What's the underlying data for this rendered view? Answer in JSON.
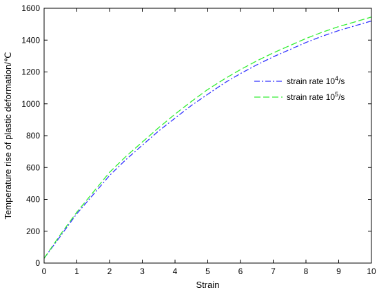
{
  "chart_data": {
    "type": "line",
    "title": "",
    "xlabel": "Strain",
    "ylabel": "Temperature rise of plastic deformation/℃",
    "xlim": [
      0,
      10
    ],
    "ylim": [
      0,
      1600
    ],
    "xticks": [
      0,
      1,
      2,
      3,
      4,
      5,
      6,
      7,
      8,
      9,
      10
    ],
    "yticks": [
      0,
      200,
      400,
      600,
      800,
      1000,
      1200,
      1400,
      1600
    ],
    "grid": false,
    "legend_position": "upper-right, inside",
    "series": [
      {
        "name": "strain rate 10^4/s",
        "legend": {
          "prefix": "strain rate 10",
          "sup": "4",
          "suffix": "/s"
        },
        "color": "#3333ff",
        "dash": "dash-dot",
        "x": [
          0,
          0.5,
          1,
          1.5,
          2,
          2.5,
          3,
          3.5,
          4,
          4.5,
          5,
          5.5,
          6,
          6.5,
          7,
          7.5,
          8,
          8.5,
          9,
          9.5,
          10
        ],
        "y": [
          30,
          170,
          310,
          430,
          550,
          650,
          740,
          830,
          910,
          990,
          1060,
          1130,
          1190,
          1245,
          1295,
          1340,
          1385,
          1425,
          1460,
          1490,
          1520
        ]
      },
      {
        "name": "strain rate 10^5/s",
        "legend": {
          "prefix": "strain rate 10",
          "sup": "5",
          "suffix": "/s"
        },
        "color": "#33ee33",
        "dash": "dashed",
        "x": [
          0,
          0.5,
          1,
          1.5,
          2,
          2.5,
          3,
          3.5,
          4,
          4.5,
          5,
          5.5,
          6,
          6.5,
          7,
          7.5,
          8,
          8.5,
          9,
          9.5,
          10
        ],
        "y": [
          30,
          180,
          320,
          445,
          570,
          670,
          760,
          850,
          935,
          1015,
          1090,
          1155,
          1215,
          1270,
          1320,
          1365,
          1410,
          1450,
          1485,
          1515,
          1545
        ]
      }
    ]
  }
}
